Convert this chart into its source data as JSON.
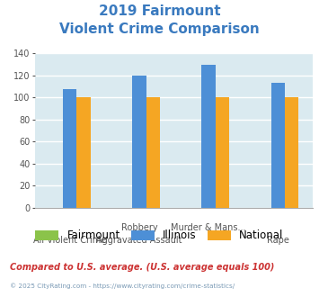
{
  "title_line1": "2019 Fairmount",
  "title_line2": "Violent Crime Comparison",
  "title_color": "#3a7abf",
  "x_labels_row1": [
    "",
    "Robbery",
    "Murder & Mans...",
    ""
  ],
  "x_labels_row2": [
    "All Violent Crime",
    "Aggravated Assault",
    "",
    "Rape"
  ],
  "series": [
    {
      "name": "Fairmount",
      "color": "#8bc34a",
      "values": [
        0,
        0,
        0,
        0
      ]
    },
    {
      "name": "Illinois",
      "color": "#4d8fd6",
      "values": [
        108,
        120,
        130,
        113
      ]
    },
    {
      "name": "National",
      "color": "#f5a623",
      "values": [
        100,
        100,
        100,
        100
      ]
    }
  ],
  "ylim": [
    0,
    140
  ],
  "yticks": [
    0,
    20,
    40,
    60,
    80,
    100,
    120,
    140
  ],
  "plot_bg_color": "#daeaf0",
  "grid_color": "#ffffff",
  "footer_text": "Compared to U.S. average. (U.S. average equals 100)",
  "footer_color": "#cc3333",
  "copyright_text": "© 2025 CityRating.com - https://www.cityrating.com/crime-statistics/",
  "copyright_color": "#7a9ab5"
}
